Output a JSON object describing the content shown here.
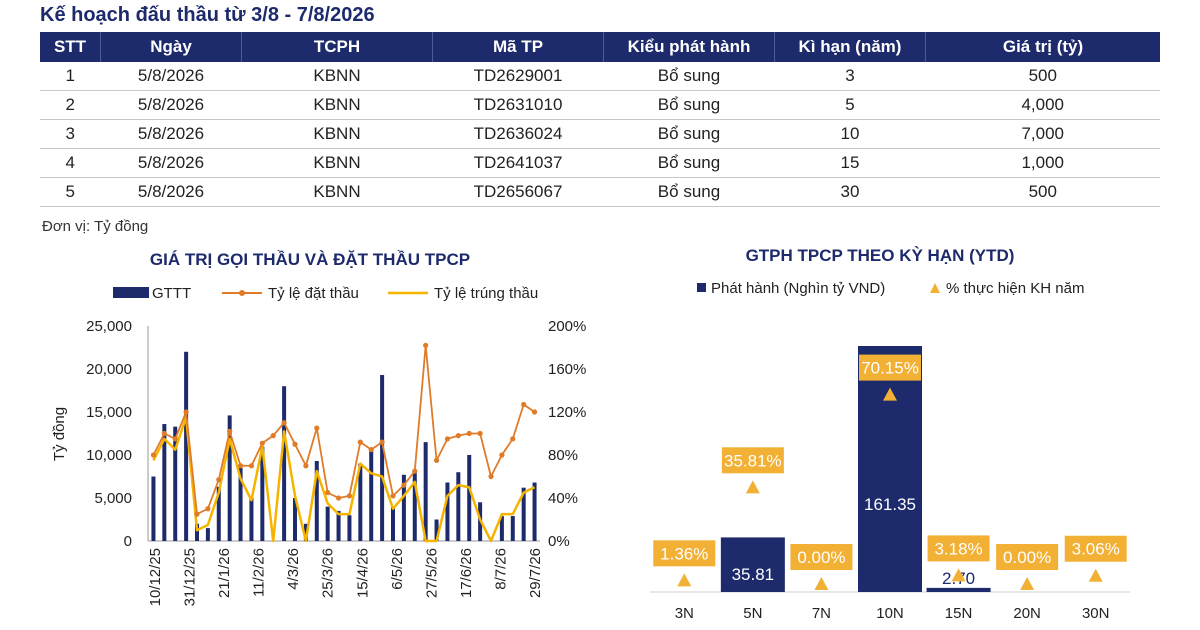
{
  "header": {
    "title": "Kế hoạch đấu thầu từ 3/8 - 7/8/2026"
  },
  "table": {
    "columns": [
      "STT",
      "Ngày",
      "TCPH",
      "Mã TP",
      "Kiểu phát hành",
      "Kì hạn (năm)",
      "Giá trị (tỷ)"
    ],
    "rows": [
      [
        "1",
        "5/8/2026",
        "KBNN",
        "TD2629001",
        "Bổ sung",
        "3",
        "500"
      ],
      [
        "2",
        "5/8/2026",
        "KBNN",
        "TD2631010",
        "Bổ sung",
        "5",
        "4,000"
      ],
      [
        "3",
        "5/8/2026",
        "KBNN",
        "TD2636024",
        "Bổ sung",
        "10",
        "7,000"
      ],
      [
        "4",
        "5/8/2026",
        "KBNN",
        "TD2641037",
        "Bổ sung",
        "15",
        "1,000"
      ],
      [
        "5",
        "5/8/2026",
        "KBNN",
        "TD2656067",
        "Bổ sung",
        "30",
        "500"
      ]
    ]
  },
  "unit_note": "Đơn vị: Tỷ đồng",
  "colors": {
    "navy": "#1d2a6b",
    "orange": "#e07b28",
    "yellow": "#f5b400",
    "marker": "#f2b035"
  },
  "chart_data": [
    {
      "type": "bar",
      "title": "GIÁ TRỊ GỌI THẦU VÀ ĐẶT THẦU TPCP",
      "ylabel": "Tỷ đồng",
      "ylim": [
        0,
        25000
      ],
      "y2lim": [
        0,
        200
      ],
      "y_ticks": [
        "25,000",
        "20,000",
        "15,000",
        "10,000",
        "5,000",
        "0"
      ],
      "y2_ticks": [
        "200%",
        "160%",
        "120%",
        "80%",
        "40%",
        "0%"
      ],
      "x_tick_labels": [
        "10/12/25",
        "31/12/25",
        "21/1/26",
        "11/2/26",
        "4/3/26",
        "25/3/26",
        "15/4/26",
        "6/5/26",
        "27/5/26",
        "17/6/26",
        "8/7/26",
        "29/7/26"
      ],
      "legend": [
        "GTTT",
        "Tỷ lệ đặt thầu",
        "Tỷ lệ trúng thầu"
      ],
      "series": [
        {
          "name": "GTTT",
          "type": "bar",
          "values": [
            7500,
            13600,
            13300,
            22000,
            2000,
            1500,
            6300,
            14600,
            8500,
            5000,
            11000,
            0,
            18000,
            5000,
            2000,
            9300,
            4000,
            3500,
            3000,
            9000,
            10500,
            19300,
            4000,
            7700,
            8000,
            11500,
            2500,
            6800,
            8000,
            10000,
            4500,
            0,
            2900,
            2900,
            6200,
            6800
          ]
        },
        {
          "name": "Tỷ lệ đặt thầu",
          "type": "line",
          "values": [
            80,
            100,
            95,
            120,
            25,
            30,
            57,
            102,
            70,
            70,
            91,
            98,
            110,
            90,
            70,
            105,
            45,
            40,
            42,
            92,
            85,
            92,
            42,
            52,
            65,
            182,
            75,
            95,
            98,
            100,
            100,
            60,
            80,
            95,
            127,
            120
          ]
        },
        {
          "name": "Tỷ lệ trúng thầu",
          "type": "line",
          "values": [
            75,
            95,
            85,
            115,
            10,
            15,
            45,
            95,
            58,
            38,
            88,
            0,
            102,
            42,
            0,
            65,
            35,
            25,
            25,
            72,
            63,
            60,
            30,
            42,
            55,
            0,
            0,
            42,
            52,
            50,
            20,
            0,
            25,
            25,
            45,
            50
          ]
        }
      ]
    },
    {
      "type": "bar",
      "title": "GTPH TPCP THEO KỲ HẠN (YTD)",
      "legend": [
        "Phát hành (Nghìn tỷ VND)",
        "% thực hiện KH năm"
      ],
      "categories": [
        "3N",
        "5N",
        "7N",
        "10N",
        "15N",
        "20N",
        "30N"
      ],
      "series": [
        {
          "name": "Phát hành (Nghìn tỷ VND)",
          "type": "bar",
          "values": [
            0,
            35.81,
            0,
            161.35,
            2.7,
            0,
            0
          ],
          "labels": [
            "",
            "35.81",
            "",
            "161.35",
            "2.70",
            "",
            ""
          ]
        },
        {
          "name": "% thực hiện KH năm",
          "type": "marker",
          "values": [
            1.36,
            35.81,
            0.0,
            70.15,
            3.18,
            0.0,
            3.06
          ],
          "labels": [
            "1.36%",
            "35.81%",
            "0.00%",
            "70.15%",
            "3.18%",
            "0.00%",
            "3.06%"
          ]
        }
      ]
    }
  ]
}
